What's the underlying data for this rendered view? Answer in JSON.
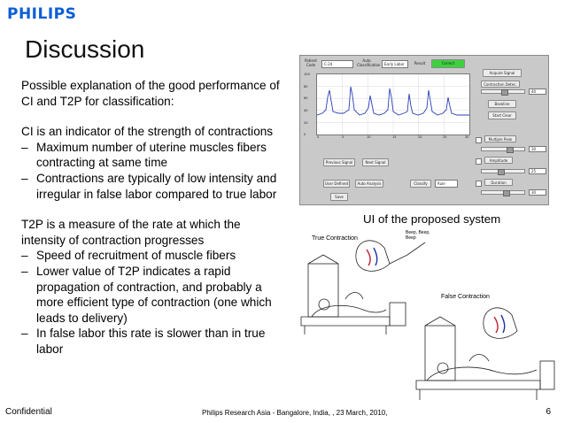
{
  "logo": "PHILIPS",
  "title": "Discussion",
  "intro": "Possible explanation of the good performance of CI and T2P for classification:",
  "ci": {
    "heading": "CI is an indicator of the strength of contractions",
    "bullets": [
      "Maximum number of uterine muscles fibers contracting at same time",
      "Contractions are typically of low intensity and irregular in false labor compared to true labor"
    ]
  },
  "t2p": {
    "heading": "T2P is a measure of the rate at which the intensity of contraction progresses",
    "bullets": [
      "Speed of recruitment of muscle fibers",
      "Lower value of T2P indicates a rapid propagation of contraction, and probably a more efficient type of contraction (one which leads to delivery)",
      "In false labor this rate is slower than in true labor"
    ]
  },
  "dash": "–",
  "ui_panel": {
    "patient_code_label": "Patient Code",
    "patient_code_value": "C-24",
    "auto_classification_label": "Auto Classification",
    "classification_value": "Early Labor",
    "result_label": "Result",
    "correct_button": "Correct",
    "acquire_signal": "Acquire Signal",
    "contraction_detec": "Contraction Detec.",
    "detec_value": "40",
    "baseline": "Baseline",
    "start_clear": "Start Clear",
    "multiple_peak": "Multiple Peak",
    "multiple_peak_value": "30",
    "amplitude": "Amplitude",
    "amplitude_value": "25",
    "duration": "Duration",
    "duration_value": "30",
    "previous_signal": "Previous Signal",
    "next_signal": "Next Signal",
    "user_defined": "User Defined",
    "auto_analysis": "Auto Analysis",
    "classify": "Classify",
    "classify_option": "Rule",
    "save": "Save",
    "y_ticks": [
      "100",
      "80",
      "60",
      "40",
      "20",
      "0"
    ],
    "x_ticks": [
      "0",
      "5",
      "10",
      "15",
      "20",
      "25",
      "30"
    ]
  },
  "caption": "UI of the proposed system",
  "illustration": {
    "true_contraction": "True Contraction",
    "false_contraction": "False Contraction",
    "bubble_text": "Beep, Beep, Beep"
  },
  "footer": {
    "left": "Confidential",
    "center": "Philips Research Asia - Bangalore, India, , 23 March, 2010,",
    "page": "6"
  },
  "colors": {
    "logo": "#0b5ed7",
    "signal": "#2a3fb8",
    "correct": "#3ed13e"
  }
}
